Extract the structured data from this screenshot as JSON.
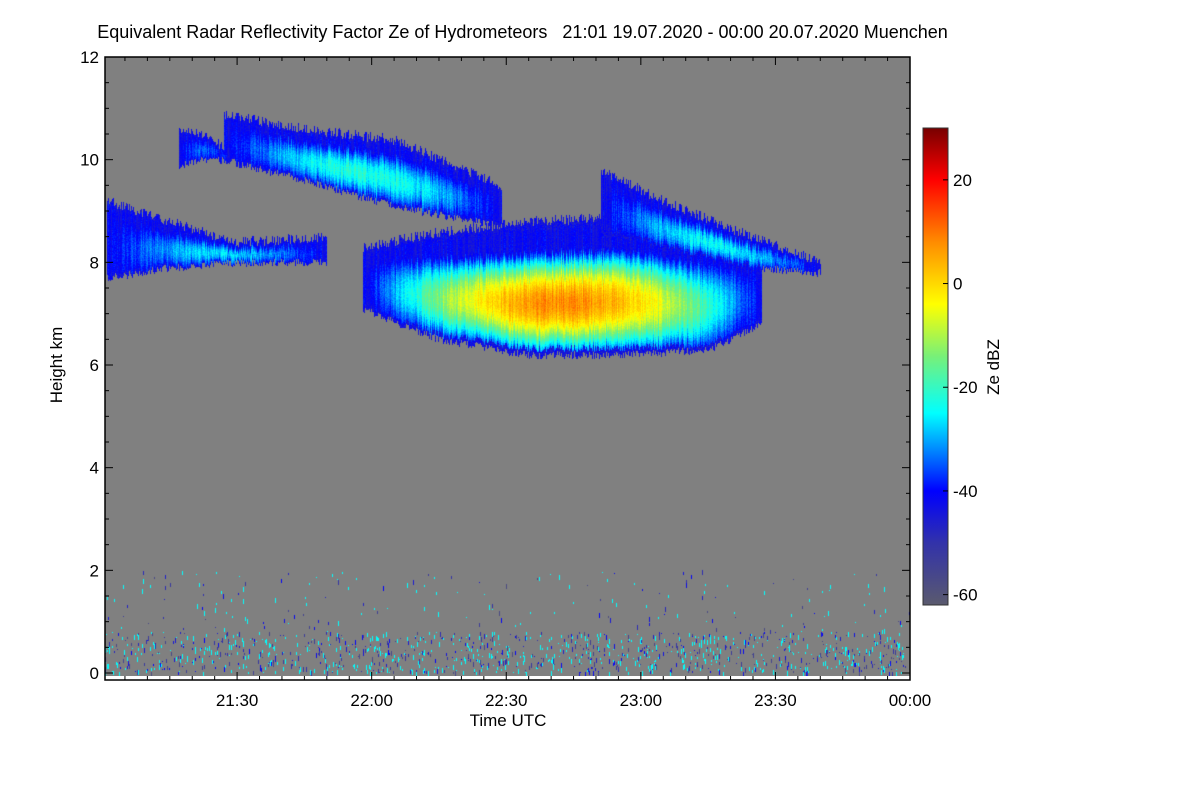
{
  "chart_data": {
    "type": "heatmap",
    "title": "Equivalent Radar Reflectivity Factor Ze of Hydrometeors",
    "period": "21:01 19.07.2020 - 00:00 20.07.2020",
    "location": "Muenchen",
    "xlabel": "Time UTC",
    "ylabel": "Height km",
    "colorbar_label": "Ze dBZ",
    "x_range_minutes_after_2100": [
      1,
      180
    ],
    "x_ticks": [
      {
        "min": 30,
        "label": "21:30"
      },
      {
        "min": 60,
        "label": "22:00"
      },
      {
        "min": 90,
        "label": "22:30"
      },
      {
        "min": 120,
        "label": "23:00"
      },
      {
        "min": 150,
        "label": "23:30"
      },
      {
        "min": 180,
        "label": "00:00"
      }
    ],
    "y_range": [
      0,
      12
    ],
    "y_ticks": [
      0,
      2,
      4,
      6,
      8,
      10,
      12
    ],
    "colorbar_range": [
      -62,
      30
    ],
    "colorbar_ticks": [
      20,
      0,
      -20,
      -40,
      -60
    ],
    "cloud_layers": [
      {
        "name": "low cirrus band",
        "t": [
          1,
          15,
          30,
          50
        ],
        "base": [
          7.7,
          7.9,
          8.0,
          8.0
        ],
        "top": [
          9.2,
          8.8,
          8.4,
          8.5
        ],
        "peak_dbz": -27
      },
      {
        "name": "upper cirrus",
        "t": [
          27,
          45,
          65,
          89
        ],
        "base": [
          10.0,
          9.6,
          9.1,
          8.7
        ],
        "top": [
          10.9,
          10.6,
          10.4,
          9.5
        ],
        "peak_dbz": -22
      },
      {
        "name": "small cell",
        "t": [
          17,
          22,
          28
        ],
        "base": [
          9.9,
          10.0,
          10.0
        ],
        "top": [
          10.6,
          10.5,
          10.2
        ],
        "peak_dbz": -35
      },
      {
        "name": "main cloud",
        "t": [
          58,
          75,
          95,
          115,
          135,
          147
        ],
        "base": [
          7.1,
          6.5,
          6.2,
          6.2,
          6.3,
          6.8
        ],
        "top": [
          8.3,
          8.6,
          8.8,
          8.9,
          8.5,
          8.1
        ],
        "peak_dbz": 8
      },
      {
        "name": "right plume",
        "t": [
          111,
          125,
          145,
          160
        ],
        "base": [
          8.6,
          8.3,
          7.9,
          7.8
        ],
        "top": [
          9.8,
          9.2,
          8.5,
          8.0
        ],
        "peak_dbz": -25
      }
    ],
    "clutter_height_km": [
      0,
      2
    ],
    "background_color": "#808080"
  }
}
